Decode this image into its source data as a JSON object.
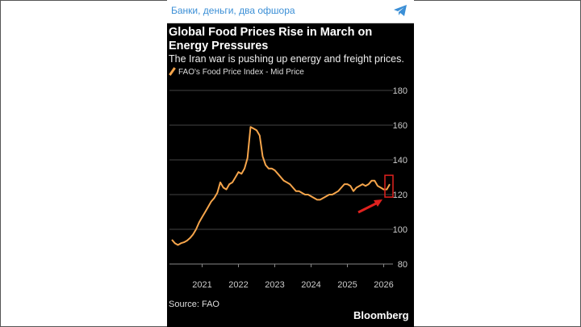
{
  "topbar": {
    "channel": "Банки, деньги, два офшора",
    "icon": "telegram-icon"
  },
  "chart_data": {
    "type": "line",
    "title": "Global Food Prices Rise in March on Energy Pressures",
    "subtitle": "The Iran war is pushing up energy and freight prices.",
    "legend": "FAO's Food Price Index - Mid Price",
    "source": "Source: FAO",
    "brand": "Bloomberg",
    "x_start": "2020-03",
    "x_frequency": "monthly",
    "xticks": [
      "2021",
      "2022",
      "2023",
      "2024",
      "2025",
      "2026"
    ],
    "yticks": [
      "80",
      "100",
      "120",
      "140",
      "160",
      "180"
    ],
    "ylim": [
      80,
      180
    ],
    "line_color": "#f6a54b",
    "annotation_color": "#e0221f",
    "values": [
      94,
      92,
      91,
      92,
      92.5,
      93.5,
      95,
      97,
      100,
      104,
      107,
      110,
      113,
      116,
      118,
      121,
      127,
      124,
      123,
      126,
      127,
      130,
      133,
      132,
      135,
      141,
      159,
      158,
      157,
      154,
      142,
      137,
      135,
      135,
      134,
      132,
      130,
      128,
      127,
      126,
      124,
      122,
      122,
      121,
      120,
      120,
      119,
      118,
      117,
      117,
      118,
      119,
      120,
      120,
      121,
      122,
      124,
      126,
      126,
      125,
      122,
      124,
      125,
      126,
      125,
      126,
      128,
      128,
      125,
      124,
      123,
      123,
      126
    ]
  }
}
